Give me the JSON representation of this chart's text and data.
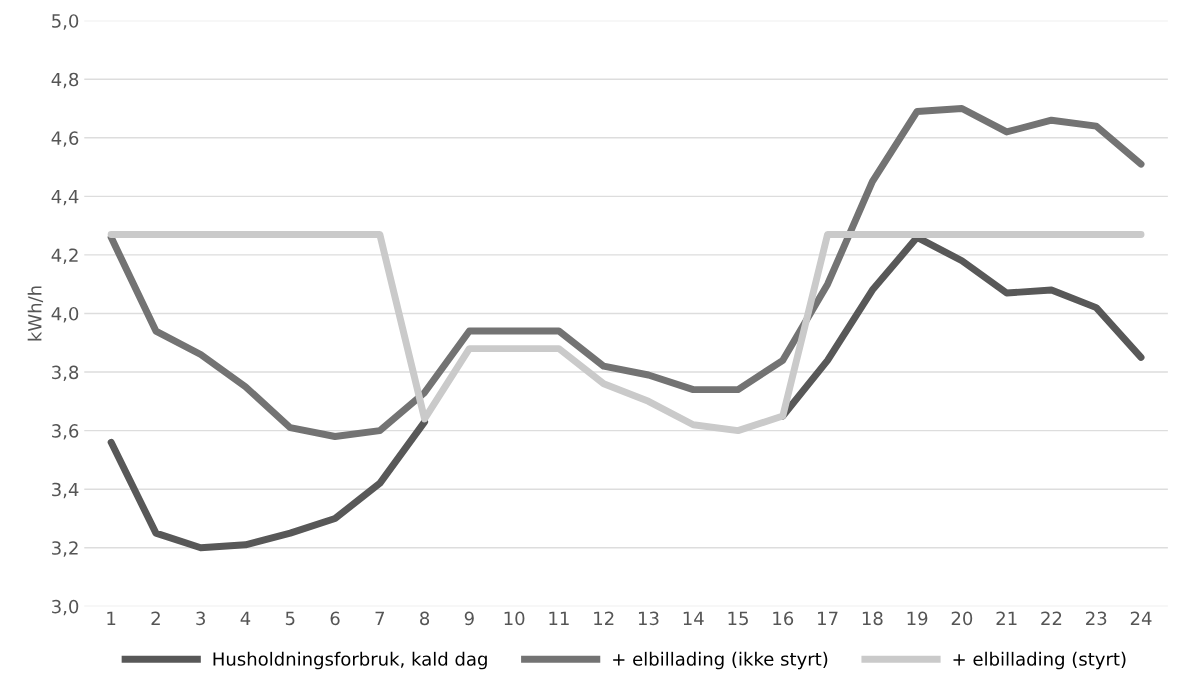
{
  "chart_data": {
    "type": "line",
    "ylabel": "kWh/h",
    "categories": [
      "1",
      "2",
      "3",
      "4",
      "5",
      "6",
      "7",
      "8",
      "9",
      "10",
      "11",
      "12",
      "13",
      "14",
      "15",
      "16",
      "17",
      "18",
      "19",
      "20",
      "21",
      "22",
      "23",
      "24"
    ],
    "series": [
      {
        "name": "Husholdningsforbruk, kald dag",
        "color": "#585858",
        "values": [
          3.56,
          3.25,
          3.2,
          3.21,
          3.25,
          3.3,
          3.42,
          3.63,
          null,
          null,
          null,
          null,
          null,
          null,
          null,
          3.65,
          3.84,
          4.08,
          4.26,
          4.18,
          4.07,
          4.08,
          4.02,
          3.85
        ]
      },
      {
        "name": "+ elbillading (ikke styrt)",
        "color": "#737373",
        "values": [
          4.26,
          3.94,
          3.86,
          3.75,
          3.61,
          3.58,
          3.6,
          3.73,
          3.94,
          3.94,
          3.94,
          3.82,
          3.79,
          3.74,
          3.74,
          3.84,
          4.1,
          4.45,
          4.69,
          4.7,
          4.62,
          4.66,
          4.64,
          4.51
        ]
      },
      {
        "name": "+ elbillading (styrt)",
        "color": "#cacaca",
        "values": [
          4.27,
          4.27,
          4.27,
          4.27,
          4.27,
          4.27,
          4.27,
          3.64,
          3.88,
          3.88,
          3.88,
          3.76,
          3.7,
          3.62,
          3.6,
          3.65,
          4.27,
          4.27,
          4.27,
          4.27,
          4.27,
          4.27,
          4.27,
          4.27
        ]
      }
    ],
    "ylim": [
      3.0,
      5.0
    ],
    "yticks": [
      {
        "value": 3.0,
        "label": "3,0"
      },
      {
        "value": 3.2,
        "label": "3,2"
      },
      {
        "value": 3.4,
        "label": "3,4"
      },
      {
        "value": 3.6,
        "label": "3,6"
      },
      {
        "value": 3.8,
        "label": "3,8"
      },
      {
        "value": 4.0,
        "label": "4,0"
      },
      {
        "value": 4.2,
        "label": "4,2"
      },
      {
        "value": 4.4,
        "label": "4,4"
      },
      {
        "value": 4.6,
        "label": "4,6"
      },
      {
        "value": 4.8,
        "label": "4,8"
      },
      {
        "value": 5.0,
        "label": "5,0"
      }
    ],
    "grid": "y",
    "legend": "bottom",
    "marker": "none",
    "line_style": "solid"
  }
}
